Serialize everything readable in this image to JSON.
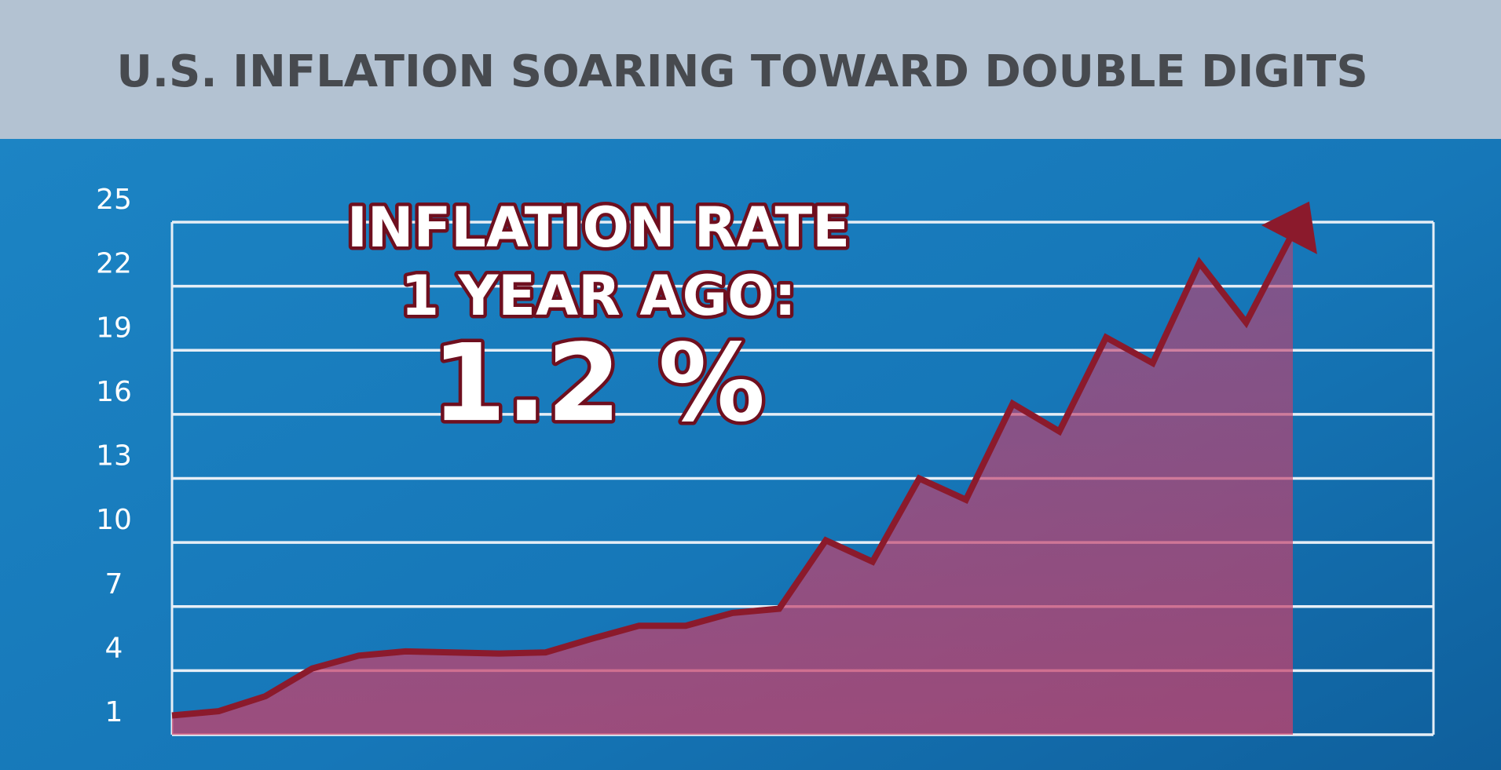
{
  "chart_data": {
    "type": "line",
    "title": "U.S. INFLATION SOARING TOWARD DOUBLE DIGITS",
    "annotations": [
      "INFLATION RATE",
      "1 YEAR AGO:",
      "1.2 %"
    ],
    "categories": [
      null,
      null,
      null,
      null,
      null,
      null,
      null,
      null,
      null,
      null,
      null,
      null,
      null,
      null,
      null,
      null,
      null,
      null,
      null,
      null,
      null,
      null,
      null,
      null,
      null
    ],
    "series": [
      {
        "name": null,
        "color": "#8b1a2c",
        "values": [
          1.9,
          2.1,
          2.8,
          4.1,
          4.7,
          4.9,
          4.85,
          4.8,
          4.85,
          5.5,
          6.1,
          6.1,
          6.7,
          6.9,
          10.1,
          9.1,
          13.0,
          12.0,
          16.5,
          15.2,
          19.6,
          18.4,
          23.1,
          20.3,
          24.5
        ]
      }
    ],
    "ylim": [
      1,
      25
    ],
    "yticks": [
      1,
      4,
      7,
      10,
      13,
      16,
      19,
      22,
      25
    ],
    "grid": true
  }
}
